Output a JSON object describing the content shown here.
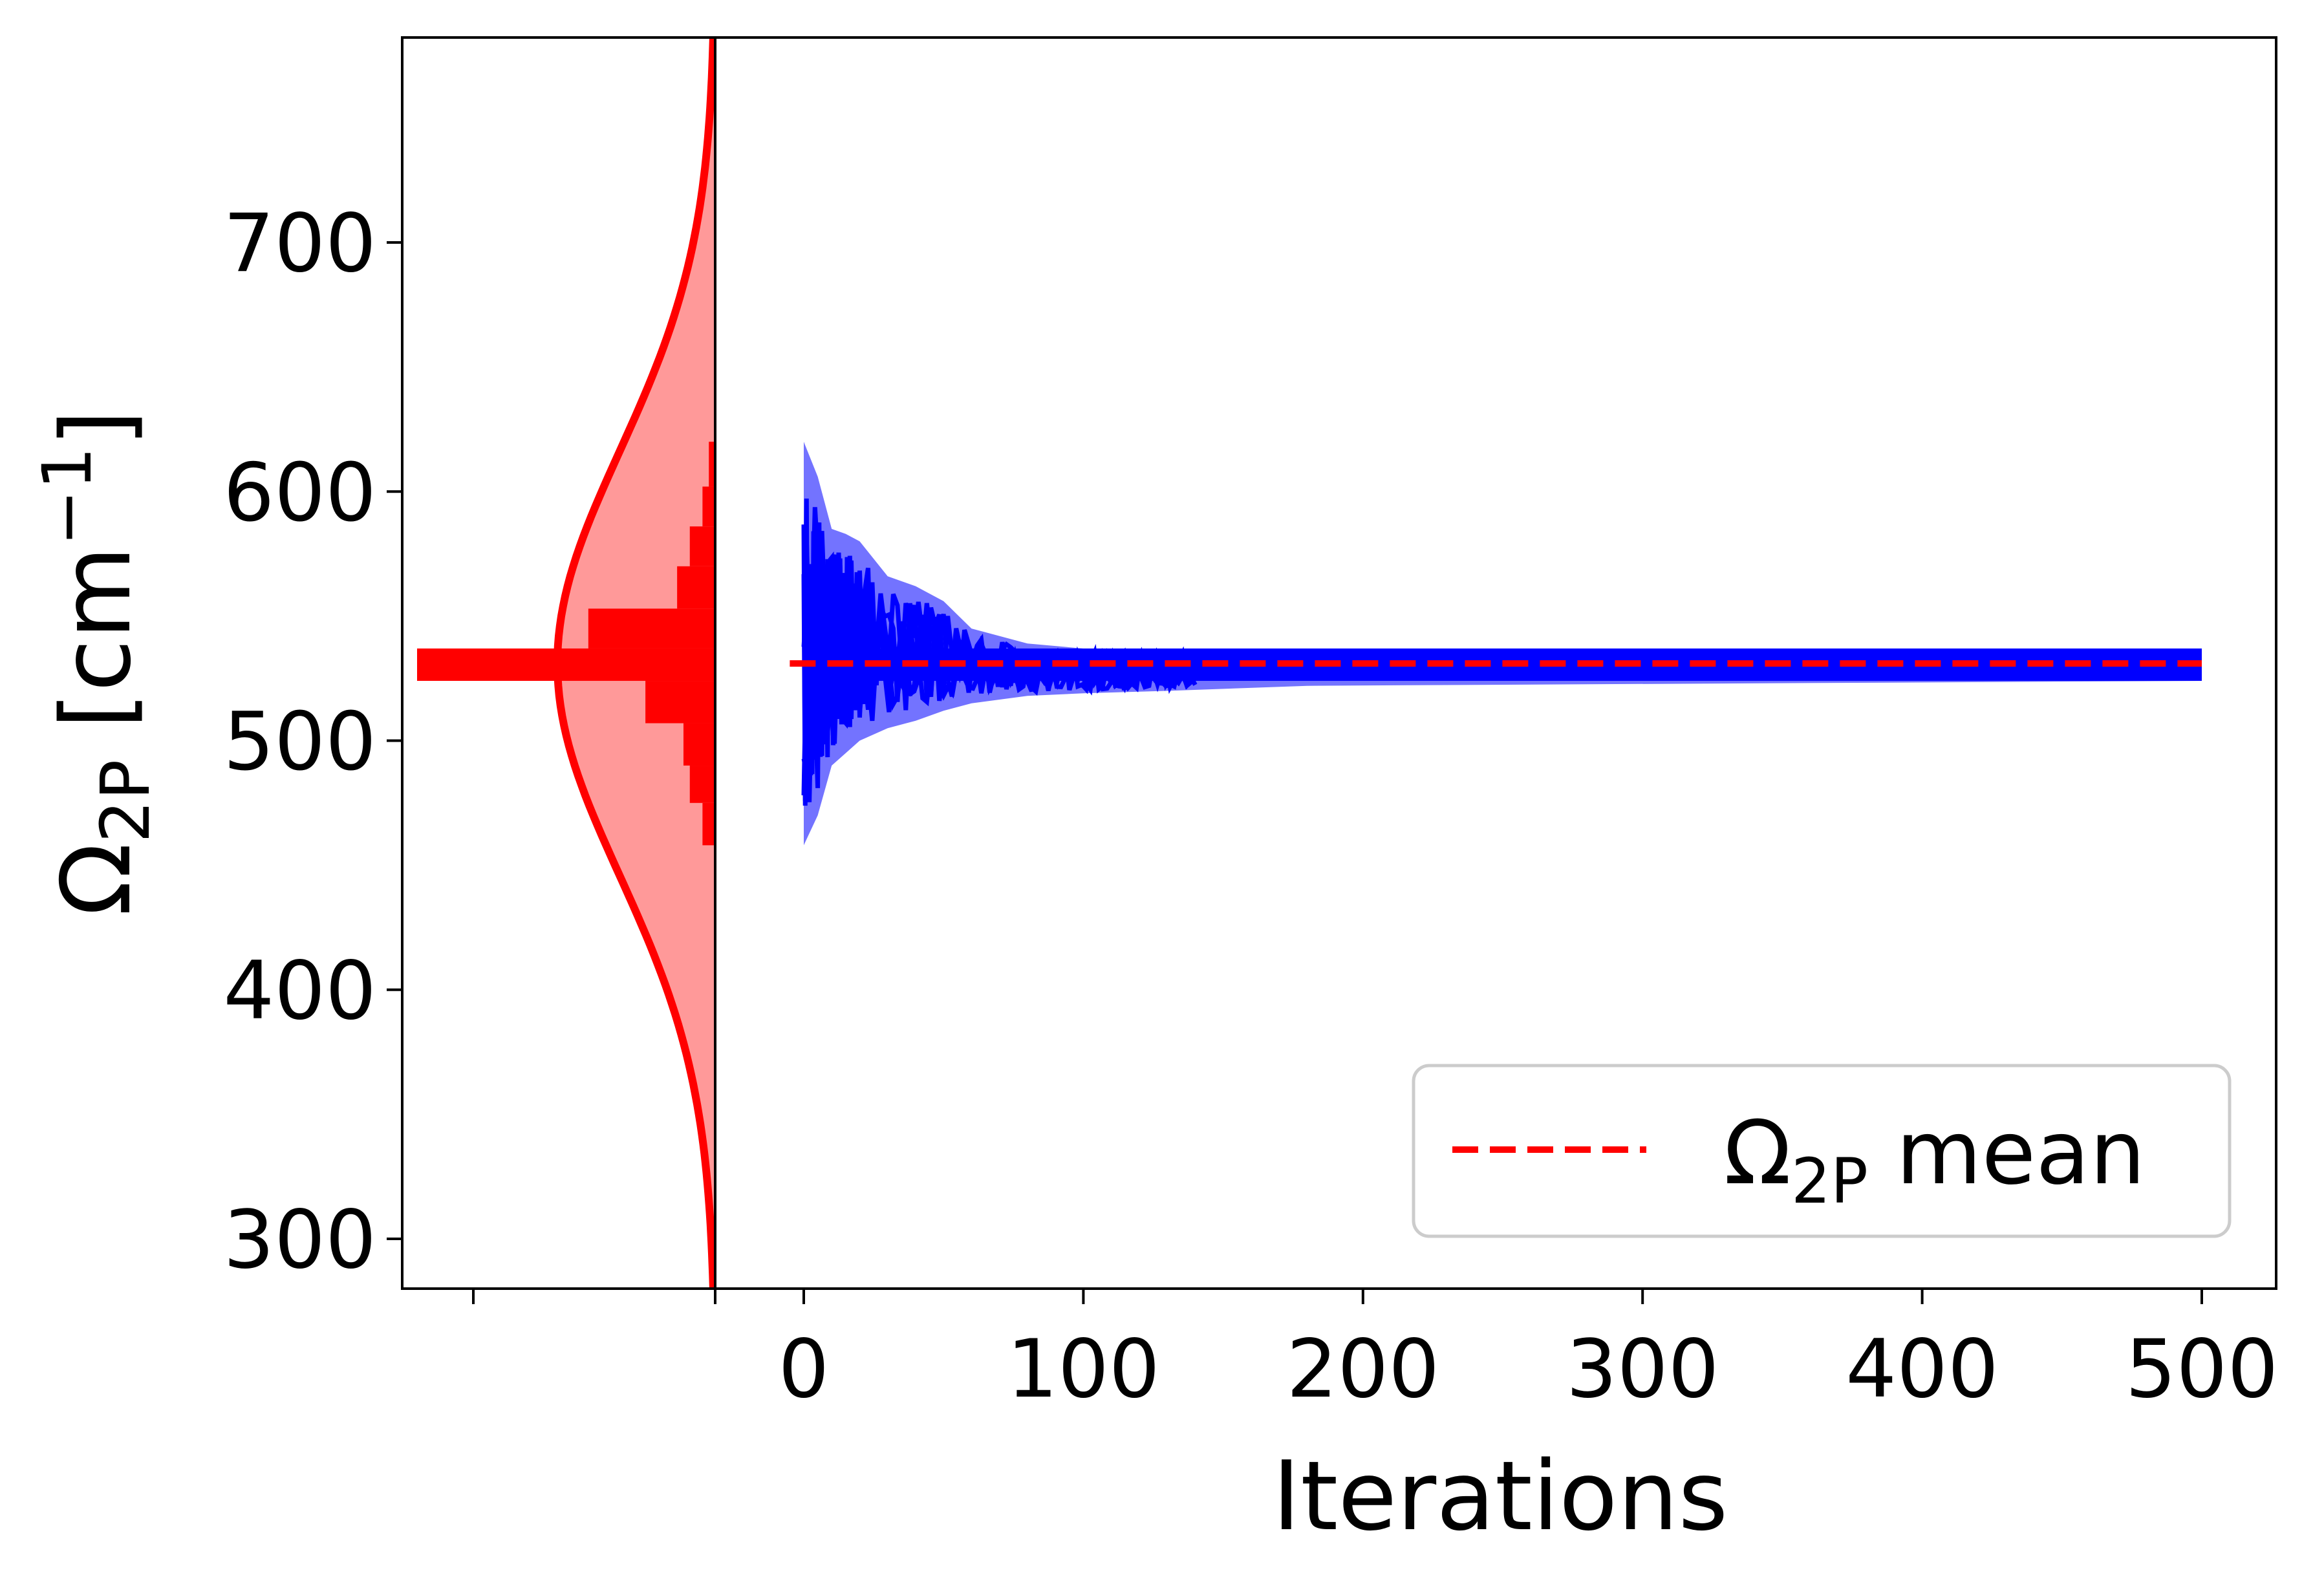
{
  "chart_data": {
    "type": "line",
    "xlabel": "Iterations",
    "ylabel": {
      "main": "Ω",
      "sub": "2P",
      "unit_open": " [cm",
      "sup": "−1",
      "unit_close": "]"
    },
    "xlim": [
      -5,
      525
    ],
    "ylim": [
      280,
      780
    ],
    "xticks": [
      0,
      100,
      200,
      300,
      400,
      500
    ],
    "yticks": [
      300,
      400,
      500,
      600,
      700
    ],
    "grid": false,
    "legend": {
      "position": "bottom-right",
      "entries": [
        {
          "main": "Ω",
          "sub": "2P",
          "rest": " mean"
        }
      ]
    },
    "mean_line": {
      "y": 531,
      "x": [
        -5,
        500
      ],
      "color": "#ff0000",
      "style": "dashed"
    },
    "trace": {
      "color": "#0000ff",
      "x_end": 500,
      "converged_band": [
        524,
        537
      ],
      "envelope": [
        {
          "x": 0,
          "lo": 458,
          "hi": 620
        },
        {
          "x": 5,
          "lo": 470,
          "hi": 606
        },
        {
          "x": 10,
          "lo": 490,
          "hi": 585
        },
        {
          "x": 15,
          "lo": 495,
          "hi": 583
        },
        {
          "x": 20,
          "lo": 500,
          "hi": 580
        },
        {
          "x": 30,
          "lo": 505,
          "hi": 566
        },
        {
          "x": 40,
          "lo": 508,
          "hi": 562
        },
        {
          "x": 50,
          "lo": 512,
          "hi": 556
        },
        {
          "x": 60,
          "lo": 515,
          "hi": 545
        },
        {
          "x": 80,
          "lo": 518,
          "hi": 539
        },
        {
          "x": 100,
          "lo": 519,
          "hi": 537
        },
        {
          "x": 130,
          "lo": 520,
          "hi": 537
        },
        {
          "x": 180,
          "lo": 522,
          "hi": 537
        },
        {
          "x": 500,
          "lo": 524,
          "hi": 537
        }
      ]
    },
    "marginal": {
      "color": "#ff0000",
      "fill_color": "#ff9999",
      "gaussian": {
        "mean": 531,
        "sd": 85
      },
      "histogram_bins": [
        {
          "lo": 458,
          "hi": 475,
          "count": 2
        },
        {
          "lo": 475,
          "hi": 490,
          "count": 4
        },
        {
          "lo": 490,
          "hi": 507,
          "count": 5
        },
        {
          "lo": 507,
          "hi": 524,
          "count": 11
        },
        {
          "lo": 524,
          "hi": 537,
          "count": 47
        },
        {
          "lo": 537,
          "hi": 553,
          "count": 20
        },
        {
          "lo": 553,
          "hi": 570,
          "count": 6
        },
        {
          "lo": 570,
          "hi": 586,
          "count": 4
        },
        {
          "lo": 586,
          "hi": 602,
          "count": 2
        },
        {
          "lo": 602,
          "hi": 620,
          "count": 1
        }
      ]
    }
  }
}
